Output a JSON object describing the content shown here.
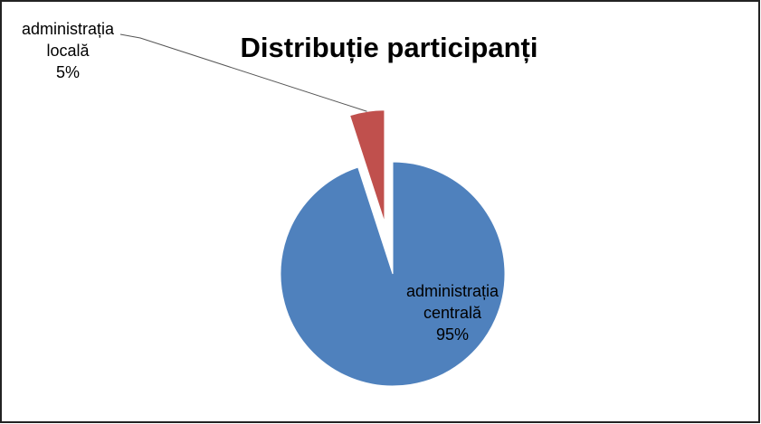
{
  "chart_data": {
    "type": "pie",
    "title": "Distribuție participanți",
    "categories": [
      "administrația locală",
      "administrația centrală"
    ],
    "values": [
      5,
      95
    ],
    "value_labels": [
      "5%",
      "95%"
    ],
    "colors": [
      "#c0504d",
      "#4f81bd"
    ],
    "exploded": [
      true,
      false
    ]
  }
}
